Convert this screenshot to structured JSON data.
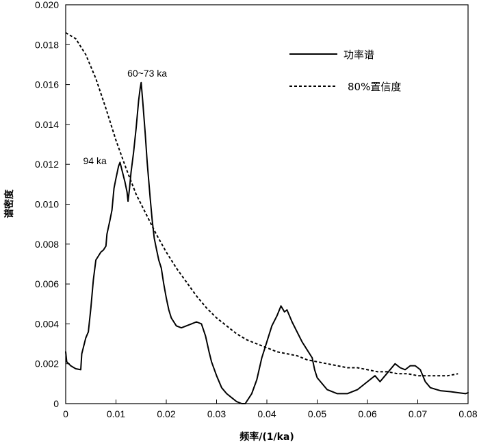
{
  "chart_data": {
    "type": "line",
    "xlabel": "频率/(1/ka)",
    "ylabel": "谱密度",
    "xlim": [
      0,
      0.08
    ],
    "ylim": [
      0,
      0.02
    ],
    "x_ticks": [
      "0",
      "0.01",
      "0.02",
      "0.03",
      "0.04",
      "0.05",
      "0.06",
      "0.07",
      "0.08"
    ],
    "y_ticks": [
      "0",
      "0.002",
      "0.004",
      "0.006",
      "0.008",
      "0.010",
      "0.012",
      "0.014",
      "0.016",
      "0.018",
      "0.020"
    ],
    "legend_position": "top-right",
    "series": [
      {
        "name": "功率谱",
        "style": "solid",
        "color": "#000000",
        "points": [
          [
            0.0,
            0.0026
          ],
          [
            0.0002,
            0.0021
          ],
          [
            0.001,
            0.0019
          ],
          [
            0.002,
            0.00175
          ],
          [
            0.003,
            0.0017
          ],
          [
            0.0032,
            0.0025
          ],
          [
            0.004,
            0.0033
          ],
          [
            0.0045,
            0.0036
          ],
          [
            0.005,
            0.0048
          ],
          [
            0.0055,
            0.0062
          ],
          [
            0.006,
            0.0072
          ],
          [
            0.007,
            0.0076
          ],
          [
            0.0075,
            0.0077
          ],
          [
            0.008,
            0.0079
          ],
          [
            0.0082,
            0.0085
          ],
          [
            0.0088,
            0.0092
          ],
          [
            0.0092,
            0.0097
          ],
          [
            0.0096,
            0.0108
          ],
          [
            0.01,
            0.0113
          ],
          [
            0.0105,
            0.0119
          ],
          [
            0.0108,
            0.0121
          ],
          [
            0.0112,
            0.0117
          ],
          [
            0.0118,
            0.0111
          ],
          [
            0.0122,
            0.0106
          ],
          [
            0.0124,
            0.01015
          ],
          [
            0.0127,
            0.0108
          ],
          [
            0.013,
            0.0116
          ],
          [
            0.0135,
            0.0126
          ],
          [
            0.014,
            0.0138
          ],
          [
            0.0145,
            0.0152
          ],
          [
            0.0148,
            0.0158
          ],
          [
            0.015,
            0.0161
          ],
          [
            0.0153,
            0.0152
          ],
          [
            0.0158,
            0.0136
          ],
          [
            0.0162,
            0.0121
          ],
          [
            0.0168,
            0.0103
          ],
          [
            0.0172,
            0.0092
          ],
          [
            0.0176,
            0.0083
          ],
          [
            0.018,
            0.0078
          ],
          [
            0.0185,
            0.0072
          ],
          [
            0.019,
            0.0068
          ],
          [
            0.0195,
            0.006
          ],
          [
            0.02,
            0.0053
          ],
          [
            0.0205,
            0.0047
          ],
          [
            0.021,
            0.0043
          ],
          [
            0.022,
            0.0039
          ],
          [
            0.023,
            0.0038
          ],
          [
            0.024,
            0.0039
          ],
          [
            0.025,
            0.004
          ],
          [
            0.026,
            0.0041
          ],
          [
            0.027,
            0.004
          ],
          [
            0.0278,
            0.0034
          ],
          [
            0.0285,
            0.0026
          ],
          [
            0.029,
            0.0021
          ],
          [
            0.03,
            0.0014
          ],
          [
            0.031,
            0.0008
          ],
          [
            0.032,
            0.0005
          ],
          [
            0.033,
            0.0003
          ],
          [
            0.034,
            0.0001
          ],
          [
            0.035,
            0.0
          ],
          [
            0.0357,
            0.0
          ],
          [
            0.037,
            0.0005
          ],
          [
            0.038,
            0.0012
          ],
          [
            0.039,
            0.0023
          ],
          [
            0.04,
            0.0031
          ],
          [
            0.041,
            0.0039
          ],
          [
            0.042,
            0.0044
          ],
          [
            0.0428,
            0.0049
          ],
          [
            0.0435,
            0.0046
          ],
          [
            0.044,
            0.0047
          ],
          [
            0.045,
            0.0041
          ],
          [
            0.046,
            0.0036
          ],
          [
            0.047,
            0.0031
          ],
          [
            0.048,
            0.0027
          ],
          [
            0.049,
            0.0023
          ],
          [
            0.0495,
            0.0017
          ],
          [
            0.05,
            0.0013
          ],
          [
            0.052,
            0.0007
          ],
          [
            0.054,
            0.0005
          ],
          [
            0.056,
            0.0005
          ],
          [
            0.058,
            0.0007
          ],
          [
            0.06,
            0.0011
          ],
          [
            0.0615,
            0.0014
          ],
          [
            0.0625,
            0.0011
          ],
          [
            0.0635,
            0.0014
          ],
          [
            0.0645,
            0.0017
          ],
          [
            0.0655,
            0.002
          ],
          [
            0.0665,
            0.0018
          ],
          [
            0.0675,
            0.0017
          ],
          [
            0.0685,
            0.0019
          ],
          [
            0.0695,
            0.0019
          ],
          [
            0.0705,
            0.0017
          ],
          [
            0.0715,
            0.0011
          ],
          [
            0.0725,
            0.0008
          ],
          [
            0.0745,
            0.00065
          ],
          [
            0.0765,
            0.0006
          ],
          [
            0.078,
            0.00055
          ],
          [
            0.0795,
            0.0005
          ],
          [
            0.08,
            0.00055
          ]
        ]
      },
      {
        "name": "80%置信度",
        "style": "dashed",
        "color": "#000000",
        "points": [
          [
            0.0,
            0.0186
          ],
          [
            0.002,
            0.0183
          ],
          [
            0.004,
            0.0175
          ],
          [
            0.006,
            0.0163
          ],
          [
            0.008,
            0.0148
          ],
          [
            0.01,
            0.0132
          ],
          [
            0.012,
            0.0118
          ],
          [
            0.014,
            0.0105
          ],
          [
            0.016,
            0.0095
          ],
          [
            0.018,
            0.0085
          ],
          [
            0.02,
            0.0076
          ],
          [
            0.022,
            0.0068
          ],
          [
            0.024,
            0.0061
          ],
          [
            0.026,
            0.0054
          ],
          [
            0.028,
            0.0048
          ],
          [
            0.03,
            0.0043
          ],
          [
            0.032,
            0.0039
          ],
          [
            0.034,
            0.0035
          ],
          [
            0.036,
            0.0032
          ],
          [
            0.038,
            0.003
          ],
          [
            0.04,
            0.0028
          ],
          [
            0.042,
            0.0026
          ],
          [
            0.044,
            0.0025
          ],
          [
            0.046,
            0.0024
          ],
          [
            0.048,
            0.0022
          ],
          [
            0.05,
            0.0021
          ],
          [
            0.052,
            0.002
          ],
          [
            0.054,
            0.0019
          ],
          [
            0.056,
            0.0018
          ],
          [
            0.058,
            0.0018
          ],
          [
            0.06,
            0.0017
          ],
          [
            0.062,
            0.0016
          ],
          [
            0.064,
            0.0016
          ],
          [
            0.066,
            0.0015
          ],
          [
            0.068,
            0.0015
          ],
          [
            0.07,
            0.0014
          ],
          [
            0.072,
            0.0014
          ],
          [
            0.074,
            0.0014
          ],
          [
            0.076,
            0.0014
          ],
          [
            0.078,
            0.0015
          ]
        ]
      }
    ],
    "annotations": [
      {
        "text": "60~73 ka",
        "x": 0.0162,
        "y": 0.0164
      },
      {
        "text": "94 ka",
        "x": 0.0058,
        "y": 0.012
      }
    ]
  }
}
